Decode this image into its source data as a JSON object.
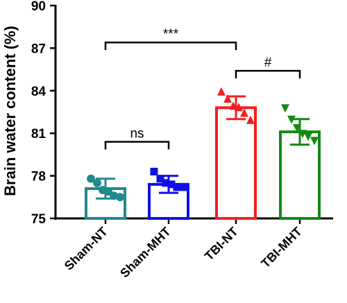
{
  "chart_data": {
    "type": "bar",
    "title": "",
    "xlabel": "",
    "ylabel": "Brain water content (%)",
    "ylim": [
      75,
      90
    ],
    "yticks": [
      75,
      78,
      81,
      84,
      87,
      90
    ],
    "grid": false,
    "legend": "none",
    "categories": [
      "Sham-NT",
      "Sham-MHT",
      "TBI-NT",
      "TBI-MHT"
    ],
    "values": [
      77.1,
      77.4,
      82.8,
      81.1
    ],
    "errors": [
      0.7,
      0.6,
      0.8,
      0.9
    ],
    "colors": [
      "#1F8A8F",
      "#1010E6",
      "#F21F1F",
      "#128A12"
    ],
    "markers": [
      "circle",
      "square",
      "triangle-up",
      "triangle-down"
    ],
    "points": [
      [
        77.8,
        77.5,
        77.0,
        76.9,
        76.6,
        76.5
      ],
      [
        78.3,
        77.8,
        77.5,
        77.4,
        77.2,
        77.2
      ],
      [
        83.9,
        83.4,
        82.9,
        82.8,
        82.4,
        81.9
      ],
      [
        82.8,
        82.0,
        81.4,
        81.0,
        80.8,
        80.5
      ]
    ],
    "annotations": [
      {
        "from": "Sham-NT",
        "to": "TBI-NT",
        "y": 87.4,
        "label": "***"
      },
      {
        "from": "Sham-NT",
        "to": "Sham-MHT",
        "y": 80.4,
        "label": "ns"
      },
      {
        "from": "TBI-NT",
        "to": "TBI-MHT",
        "y": 85.4,
        "label": "#"
      }
    ]
  }
}
